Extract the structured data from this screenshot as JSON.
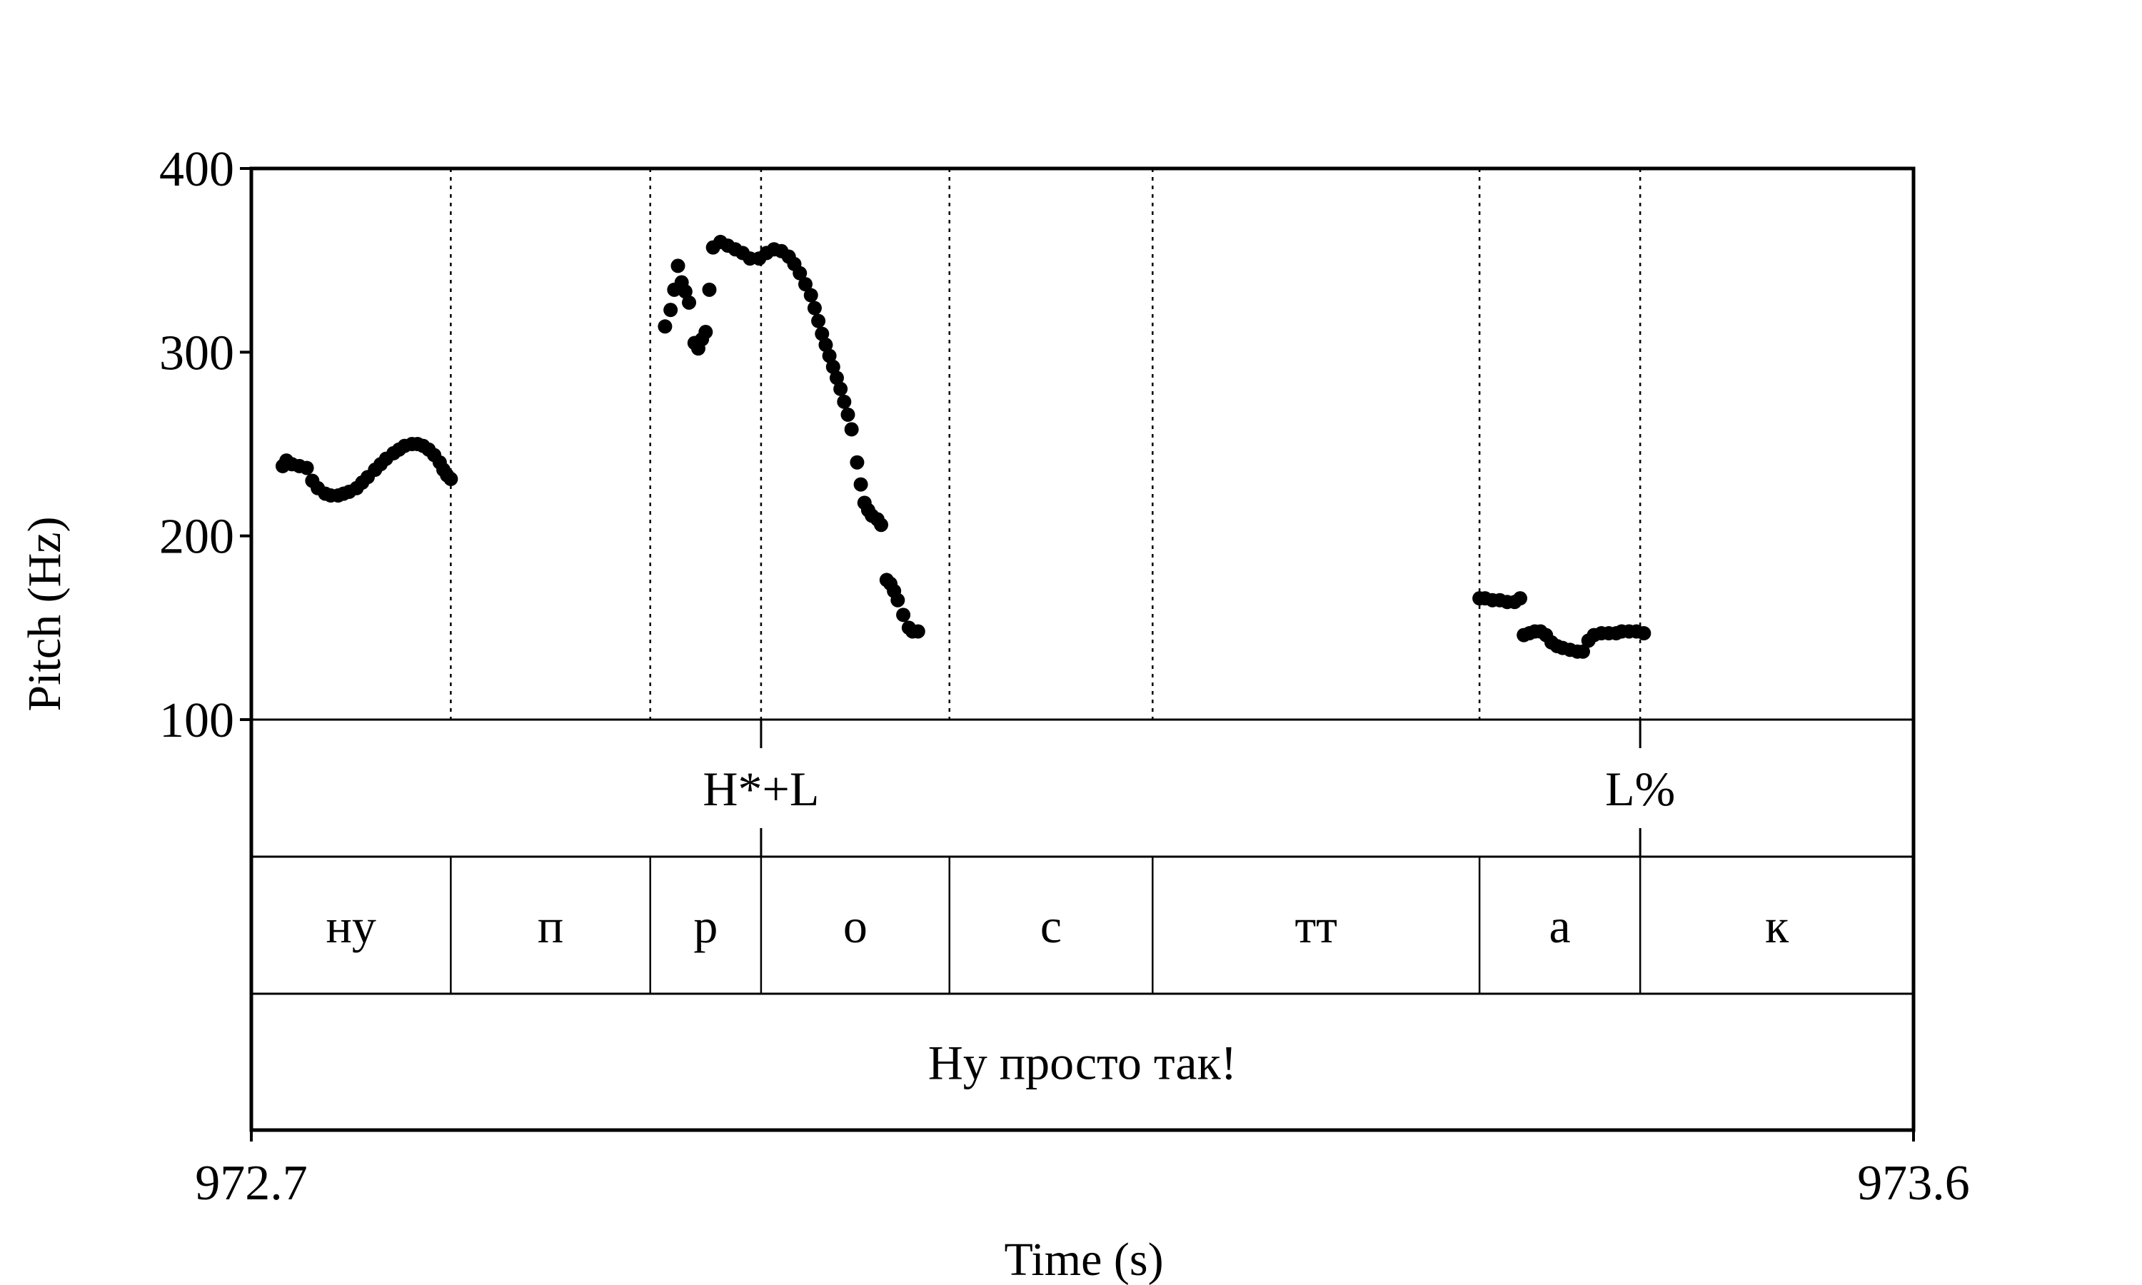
{
  "chart_data": {
    "type": "scatter",
    "ylabel": "Pitch (Hz)",
    "xlabel": "Time (s)",
    "ylim": [
      100,
      400
    ],
    "xlim": [
      972.7,
      973.6
    ],
    "y_ticks": [
      "100",
      "200",
      "300",
      "400"
    ],
    "x_tick_labels": [
      "972.7",
      "973.6"
    ],
    "grid": false,
    "segment_boundaries": [
      972.808,
      972.916,
      972.976,
      973.078,
      973.188,
      973.365,
      973.452
    ],
    "intonation_tier": [
      {
        "time": 972.976,
        "label": "H*+L"
      },
      {
        "time": 973.452,
        "label": "L%"
      }
    ],
    "segment_tier": [
      {
        "start": 972.7,
        "end": 972.808,
        "label": "ну"
      },
      {
        "start": 972.808,
        "end": 972.916,
        "label": "п"
      },
      {
        "start": 972.916,
        "end": 972.976,
        "label": "р"
      },
      {
        "start": 972.976,
        "end": 973.078,
        "label": "о"
      },
      {
        "start": 973.078,
        "end": 973.188,
        "label": "с"
      },
      {
        "start": 973.188,
        "end": 973.365,
        "label": "тт"
      },
      {
        "start": 973.365,
        "end": 973.452,
        "label": "а"
      },
      {
        "start": 973.452,
        "end": 973.6,
        "label": "к"
      }
    ],
    "utterance_tier": [
      {
        "start": 972.7,
        "end": 973.6,
        "label": "Ну просто так!"
      }
    ],
    "series": [
      {
        "points": [
          [
            972.717,
            238
          ],
          [
            972.719,
            241
          ],
          [
            972.722,
            239
          ],
          [
            972.726,
            238
          ],
          [
            972.73,
            237
          ],
          [
            972.733,
            230
          ],
          [
            972.736,
            226
          ],
          [
            972.74,
            223
          ],
          [
            972.743,
            222
          ],
          [
            972.747,
            222
          ],
          [
            972.75,
            223
          ],
          [
            972.753,
            224
          ],
          [
            972.757,
            226
          ],
          [
            972.76,
            229
          ],
          [
            972.763,
            232
          ],
          [
            972.767,
            236
          ],
          [
            972.77,
            239
          ],
          [
            972.773,
            242
          ],
          [
            972.777,
            245
          ],
          [
            972.78,
            247
          ],
          [
            972.783,
            249
          ],
          [
            972.787,
            250
          ],
          [
            972.79,
            250
          ],
          [
            972.793,
            249
          ],
          [
            972.796,
            247
          ],
          [
            972.799,
            244
          ],
          [
            972.802,
            240
          ],
          [
            972.804,
            236
          ],
          [
            972.806,
            233
          ],
          [
            972.808,
            231
          ],
          [
            972.924,
            314
          ],
          [
            972.927,
            323
          ],
          [
            972.929,
            334
          ],
          [
            972.931,
            347
          ],
          [
            972.933,
            338
          ],
          [
            972.935,
            333
          ],
          [
            972.937,
            327
          ],
          [
            972.94,
            305
          ],
          [
            972.942,
            302
          ],
          [
            972.944,
            307
          ],
          [
            972.946,
            311
          ],
          [
            972.948,
            334
          ],
          [
            972.95,
            357
          ],
          [
            972.954,
            360
          ],
          [
            972.958,
            358
          ],
          [
            972.962,
            356
          ],
          [
            972.966,
            354
          ],
          [
            972.97,
            351
          ],
          [
            972.975,
            351
          ],
          [
            972.979,
            354
          ],
          [
            972.983,
            356
          ],
          [
            972.987,
            355
          ],
          [
            972.991,
            352
          ],
          [
            972.994,
            348
          ],
          [
            972.997,
            343
          ],
          [
            973.0,
            337
          ],
          [
            973.003,
            331
          ],
          [
            973.005,
            324
          ],
          [
            973.007,
            317
          ],
          [
            973.009,
            310
          ],
          [
            973.011,
            304
          ],
          [
            973.013,
            298
          ],
          [
            973.015,
            292
          ],
          [
            973.017,
            286
          ],
          [
            973.019,
            280
          ],
          [
            973.021,
            273
          ],
          [
            973.023,
            266
          ],
          [
            973.025,
            258
          ],
          [
            973.028,
            240
          ],
          [
            973.03,
            228
          ],
          [
            973.032,
            218
          ],
          [
            973.034,
            214
          ],
          [
            973.036,
            211
          ],
          [
            973.039,
            209
          ],
          [
            973.041,
            206
          ],
          [
            973.044,
            176
          ],
          [
            973.046,
            174
          ],
          [
            973.048,
            170
          ],
          [
            973.05,
            165
          ],
          [
            973.053,
            157
          ],
          [
            973.056,
            150
          ],
          [
            973.058,
            148
          ],
          [
            973.061,
            148
          ],
          [
            973.365,
            166
          ],
          [
            973.368,
            166
          ],
          [
            973.372,
            165
          ],
          [
            973.376,
            165
          ],
          [
            973.38,
            164
          ],
          [
            973.384,
            164
          ],
          [
            973.387,
            166
          ],
          [
            973.389,
            146
          ],
          [
            973.392,
            147
          ],
          [
            973.395,
            148
          ],
          [
            973.398,
            148
          ],
          [
            973.401,
            146
          ],
          [
            973.404,
            142
          ],
          [
            973.407,
            140
          ],
          [
            973.41,
            139
          ],
          [
            973.414,
            138
          ],
          [
            973.418,
            137
          ],
          [
            973.421,
            137
          ],
          [
            973.424,
            143
          ],
          [
            973.427,
            146
          ],
          [
            973.431,
            147
          ],
          [
            973.435,
            147
          ],
          [
            973.439,
            147
          ],
          [
            973.442,
            148
          ],
          [
            973.446,
            148
          ],
          [
            973.45,
            148
          ],
          [
            973.454,
            147
          ]
        ]
      }
    ]
  }
}
